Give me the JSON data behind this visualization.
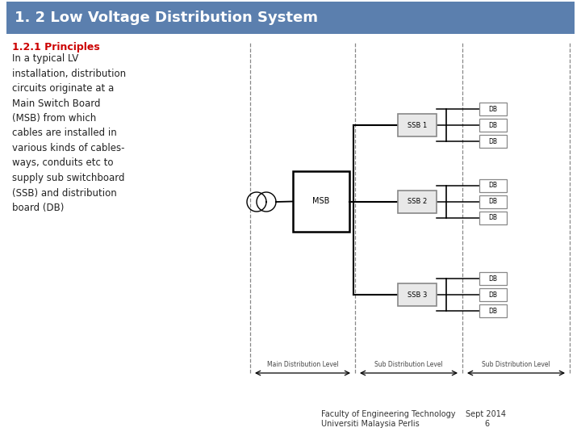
{
  "title": "1. 2 Low Voltage Distribution System",
  "title_bg": "#5b7fae",
  "title_fg": "#ffffff",
  "subtitle": "1.2.1 Principles",
  "subtitle_color": "#cc0000",
  "body_text": "In a typical LV\ninstallation, distribution\ncircuits originate at a\nMain Switch Board\n(MSB) from which\ncables are installed in\nvarious kinds of cables-\nways, conduits etc to\nsupply sub switchboard\n(SSB) and distribution\nboard (DB)",
  "footer_line1": "Faculty of Engineering Technology    Sept 2014",
  "footer_line2": "Universiti Malaysia Perlis                          6",
  "bg_color": "#ffffff",
  "body_color": "#222222"
}
